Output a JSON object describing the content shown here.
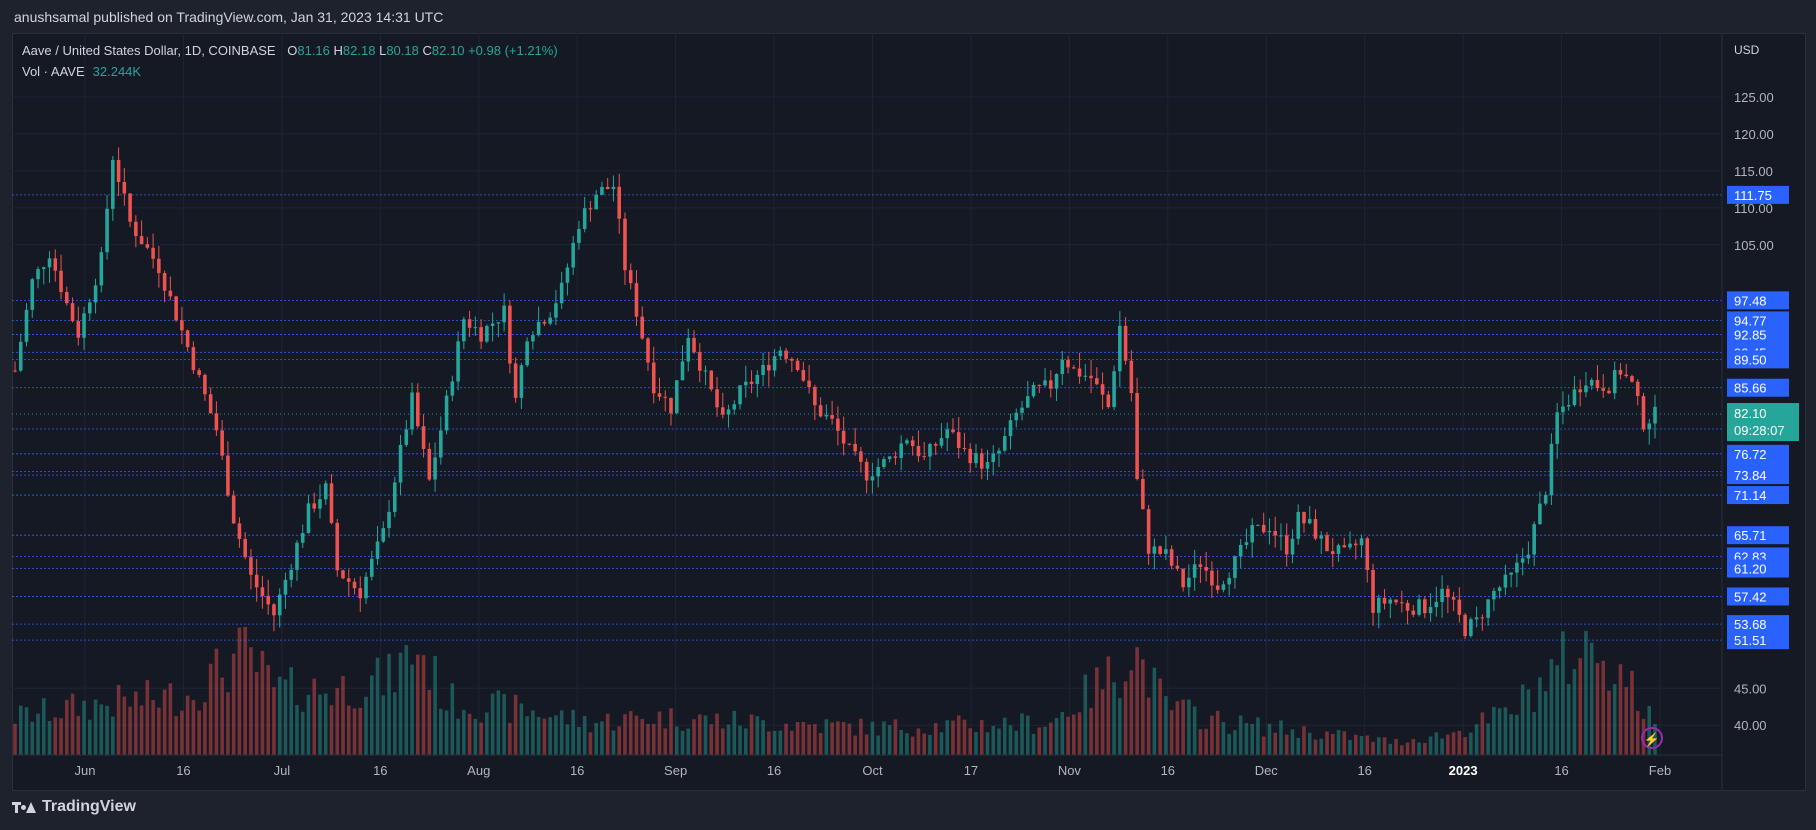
{
  "header": {
    "published": "anushsamal published on TradingView.com, Jan 31, 2023 14:31 UTC"
  },
  "legend": {
    "symbol": "Aave / United States Dollar, 1D, COINBASE",
    "o_label": "O",
    "o_value": "81.16",
    "h_label": "H",
    "h_value": "82.18",
    "l_label": "L",
    "l_value": "80.18",
    "c_label": "C",
    "c_value": "82.10",
    "change": "+0.98 (+1.21%)",
    "vol_label": "Vol · AAVE",
    "vol_value": "32.244K"
  },
  "footer": {
    "brand": "TradingView"
  },
  "colors": {
    "up": "#26a69a",
    "down": "#ef5350",
    "level_line": "#2962ff",
    "label_bg": "#2962ff",
    "last_price_bg": "#26a69a"
  },
  "chart_data": {
    "type": "candlestick",
    "currency": "USD",
    "y_ticks": [
      "125.00",
      "120.00",
      "115.00",
      "110.00",
      "105.00",
      "45.00",
      "40.00"
    ],
    "x_ticks": [
      "Jun",
      "16",
      "Jul",
      "16",
      "Aug",
      "16",
      "Sep",
      "16",
      "Oct",
      "17",
      "Nov",
      "16",
      "Dec",
      "16",
      "2023",
      "16",
      "Feb"
    ],
    "ylim": [
      38,
      130
    ],
    "levels": [
      {
        "value": 111.75,
        "label": "111.75"
      },
      {
        "value": 97.48,
        "label": "97.48"
      },
      {
        "value": 94.77,
        "label": "94.77"
      },
      {
        "value": 92.85,
        "label": "92.85"
      },
      {
        "value": 90.45,
        "label": "90.45"
      },
      {
        "value": 89.5,
        "label": "89.50"
      },
      {
        "value": 85.66,
        "label": "85.66"
      },
      {
        "value": 80.08,
        "label": "80.08"
      },
      {
        "value": 76.72,
        "label": "76.72"
      },
      {
        "value": 74.33,
        "label": "74.33"
      },
      {
        "value": 73.84,
        "label": "73.84"
      },
      {
        "value": 71.14,
        "label": "71.14"
      },
      {
        "value": 65.71,
        "label": "65.71"
      },
      {
        "value": 62.83,
        "label": "62.83"
      },
      {
        "value": 61.2,
        "label": "61.20"
      },
      {
        "value": 57.42,
        "label": "57.42"
      },
      {
        "value": 53.68,
        "label": "53.68"
      },
      {
        "value": 51.51,
        "label": "51.51"
      }
    ],
    "last_price": "82.10",
    "countdown": "09:28:07",
    "close_anchors": [
      [
        0,
        88
      ],
      [
        3,
        100
      ],
      [
        6,
        104
      ],
      [
        9,
        97
      ],
      [
        11,
        93
      ],
      [
        15,
        103
      ],
      [
        17,
        117
      ],
      [
        20,
        108
      ],
      [
        25,
        102
      ],
      [
        31,
        89
      ],
      [
        35,
        80
      ],
      [
        38,
        68
      ],
      [
        41,
        60
      ],
      [
        45,
        55
      ],
      [
        48,
        62
      ],
      [
        51,
        69
      ],
      [
        54,
        72
      ],
      [
        56,
        61
      ],
      [
        60,
        58
      ],
      [
        64,
        66
      ],
      [
        67,
        77
      ],
      [
        69,
        84
      ],
      [
        72,
        73
      ],
      [
        74,
        80
      ],
      [
        78,
        95
      ],
      [
        81,
        93
      ],
      [
        85,
        96
      ],
      [
        87,
        84
      ],
      [
        89,
        93
      ],
      [
        93,
        96
      ],
      [
        95,
        99
      ],
      [
        98,
        108
      ],
      [
        101,
        112
      ],
      [
        104,
        113
      ],
      [
        106,
        102
      ],
      [
        108,
        96
      ],
      [
        111,
        86
      ],
      [
        114,
        83
      ],
      [
        117,
        93
      ],
      [
        120,
        87
      ],
      [
        123,
        81
      ],
      [
        126,
        85
      ],
      [
        130,
        88
      ],
      [
        133,
        91
      ],
      [
        136,
        89
      ],
      [
        139,
        83
      ],
      [
        142,
        81
      ],
      [
        145,
        77
      ],
      [
        148,
        74
      ],
      [
        152,
        76
      ],
      [
        155,
        79
      ],
      [
        158,
        76
      ],
      [
        162,
        80
      ],
      [
        165,
        77
      ],
      [
        169,
        75
      ],
      [
        171,
        77
      ],
      [
        174,
        82
      ],
      [
        177,
        85
      ],
      [
        180,
        86
      ],
      [
        182,
        90
      ],
      [
        184,
        88
      ],
      [
        187,
        87
      ],
      [
        190,
        83
      ],
      [
        192,
        94
      ],
      [
        194,
        85
      ],
      [
        195,
        73
      ],
      [
        197,
        64
      ],
      [
        200,
        63
      ],
      [
        203,
        59
      ],
      [
        206,
        62
      ],
      [
        209,
        59
      ],
      [
        212,
        62
      ],
      [
        215,
        66
      ],
      [
        218,
        67
      ],
      [
        221,
        64
      ],
      [
        223,
        68
      ],
      [
        225,
        67
      ],
      [
        228,
        64
      ],
      [
        231,
        63
      ],
      [
        234,
        65
      ],
      [
        236,
        56
      ],
      [
        239,
        57
      ],
      [
        242,
        56
      ],
      [
        245,
        56
      ],
      [
        248,
        58
      ],
      [
        250,
        56
      ],
      [
        252,
        53
      ],
      [
        254,
        54
      ],
      [
        257,
        58
      ],
      [
        260,
        60
      ],
      [
        263,
        64
      ],
      [
        266,
        72
      ],
      [
        268,
        82
      ],
      [
        270,
        84
      ],
      [
        273,
        87
      ],
      [
        275,
        86
      ],
      [
        277,
        86
      ],
      [
        279,
        88
      ],
      [
        281,
        86
      ],
      [
        283,
        81
      ],
      [
        285,
        82
      ]
    ],
    "vol_anchors": [
      [
        0,
        0.35
      ],
      [
        12,
        0.45
      ],
      [
        30,
        0.55
      ],
      [
        40,
        0.95
      ],
      [
        45,
        0.6
      ],
      [
        55,
        0.6
      ],
      [
        65,
        0.7
      ],
      [
        70,
        1
      ],
      [
        75,
        0.5
      ],
      [
        90,
        0.4
      ],
      [
        100,
        0.3
      ],
      [
        110,
        0.35
      ],
      [
        130,
        0.3
      ],
      [
        150,
        0.25
      ],
      [
        180,
        0.3
      ],
      [
        192,
        0.8
      ],
      [
        194,
        1
      ],
      [
        200,
        0.45
      ],
      [
        210,
        0.3
      ],
      [
        240,
        0.12
      ],
      [
        250,
        0.2
      ],
      [
        260,
        0.4
      ],
      [
        266,
        0.7
      ],
      [
        270,
        0.9
      ],
      [
        275,
        1
      ],
      [
        280,
        0.7
      ],
      [
        285,
        0.25
      ]
    ]
  }
}
